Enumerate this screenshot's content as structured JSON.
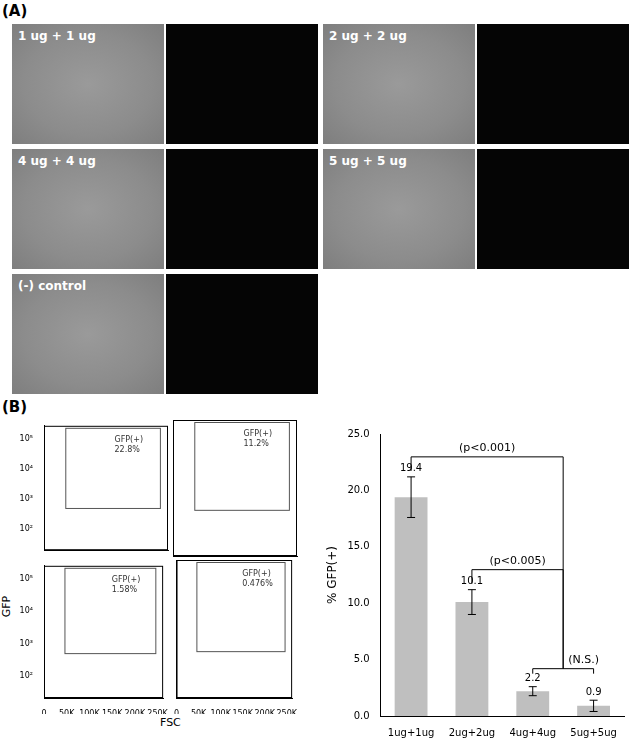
{
  "panel_labels": [
    "(A)",
    "(B)"
  ],
  "images": [
    {
      "label": "1 ug + 1 ug"
    },
    {
      "label": "2 ug + 2 ug"
    },
    {
      "label": "4 ug + 4 ug"
    },
    {
      "label": "5 ug + 5 ug"
    },
    {
      "label": "(-) control"
    }
  ],
  "flow_axes": {
    "x_label": "FSC",
    "y_label": "GFP"
  },
  "chart_data": [
    {
      "type": "scatter",
      "log": "y",
      "grid": false,
      "tick_labels": "y",
      "xlim": [
        0,
        262144
      ],
      "xticks": [
        0,
        {
          "value": 50000,
          "label": "50K"
        },
        {
          "value": 100000,
          "label": "100K"
        },
        {
          "value": 150000,
          "label": "150K"
        },
        {
          "value": 200000,
          "label": "200K"
        },
        {
          "value": 250000,
          "label": "250K"
        }
      ],
      "ylim": [
        20,
        262144
      ],
      "yticks": [
        {
          "value": 100,
          "label": "10²"
        },
        {
          "value": 1000,
          "label": "10³"
        },
        {
          "value": 10000,
          "label": "10⁴"
        },
        {
          "value": 100000,
          "label": "10⁵"
        }
      ],
      "gate": {
        "x": [
          45000,
          245000
        ],
        "y": [
          500,
          262144
        ]
      },
      "gate_text": [
        "GFP(+)",
        "22.8%"
      ]
    },
    {
      "type": "scatter",
      "log": "y",
      "grid": false,
      "tick_labels": false,
      "xlim": [
        0,
        262144
      ],
      "xticks": [
        0,
        {
          "value": 50000,
          "label": "50K"
        },
        {
          "value": 100000,
          "label": "100K"
        },
        {
          "value": 150000,
          "label": "150K"
        },
        {
          "value": 200000,
          "label": "200K"
        },
        {
          "value": 250000,
          "label": "250K"
        }
      ],
      "ylim": [
        20,
        262144
      ],
      "yticks": [
        {
          "value": 100,
          "label": "10²"
        },
        {
          "value": 1000,
          "label": "10³"
        },
        {
          "value": 10000,
          "label": "10⁴"
        },
        {
          "value": 100000,
          "label": "10⁵"
        }
      ],
      "gate": {
        "x": [
          45000,
          245000
        ],
        "y": [
          500,
          262144
        ]
      },
      "gate_text": [
        "GFP(+)",
        "11.2%"
      ]
    },
    {
      "type": "scatter",
      "log": "y",
      "grid": false,
      "tick_labels": true,
      "xlim": [
        0,
        262144
      ],
      "xticks": [
        0,
        {
          "value": 50000,
          "label": "50K"
        },
        {
          "value": 100000,
          "label": "100K"
        },
        {
          "value": 150000,
          "label": "150K"
        },
        {
          "value": 200000,
          "label": "200K"
        },
        {
          "value": 250000,
          "label": "250K"
        }
      ],
      "ylim": [
        20,
        262144
      ],
      "yticks": [
        {
          "value": 100,
          "label": "10²"
        },
        {
          "value": 1000,
          "label": "10³"
        },
        {
          "value": 10000,
          "label": "10⁴"
        },
        {
          "value": 100000,
          "label": "10⁵"
        }
      ],
      "gate": {
        "x": [
          45000,
          245000
        ],
        "y": [
          500,
          262144
        ]
      },
      "gate_text": [
        "GFP(+)",
        "1.58%"
      ]
    },
    {
      "type": "scatter",
      "log": "y",
      "grid": false,
      "tick_labels": "x",
      "xlim": [
        0,
        262144
      ],
      "xticks": [
        0,
        {
          "value": 50000,
          "label": "50K"
        },
        {
          "value": 100000,
          "label": "100K"
        },
        {
          "value": 150000,
          "label": "150K"
        },
        {
          "value": 200000,
          "label": "200K"
        },
        {
          "value": 250000,
          "label": "250K"
        }
      ],
      "ylim": [
        20,
        262144
      ],
      "yticks": [
        {
          "value": 100,
          "label": "10²"
        },
        {
          "value": 1000,
          "label": "10³"
        },
        {
          "value": 10000,
          "label": "10⁴"
        },
        {
          "value": 100000,
          "label": "10⁵"
        }
      ],
      "gate": {
        "x": [
          45000,
          245000
        ],
        "y": [
          500,
          262144
        ]
      },
      "gate_text": [
        "GFP(+)",
        "0.476%"
      ]
    },
    {
      "type": "bar",
      "grid": false,
      "data_labels": true,
      "categories": [
        "1ug+1ug",
        "2ug+2ug",
        "4ug+4ug",
        "5ug+5ug"
      ],
      "values": [
        19.4,
        10.1,
        2.2,
        0.9
      ],
      "errors": [
        1.8,
        1.1,
        0.4,
        0.5
      ],
      "color": "#bfbfbf",
      "y_label": "% GFP(+)",
      "ylim": [
        0,
        25
      ],
      "yticks": [
        {
          "value": 0,
          "label": "0.0"
        },
        {
          "value": 5,
          "label": "5.0"
        },
        {
          "value": 10,
          "label": "10.0"
        },
        {
          "value": 15,
          "label": "15.0"
        },
        {
          "value": 20,
          "label": "20.0"
        },
        {
          "value": 25,
          "label": "25.0"
        }
      ],
      "annotations": [
        {
          "text": "(p<0.001)",
          "from": 0,
          "to": [
            2,
            3
          ]
        },
        {
          "text": "(p<0.005)",
          "from": 1,
          "to": [
            2,
            3
          ]
        },
        {
          "text": "(N.S.)",
          "between": [
            2,
            3
          ]
        }
      ]
    }
  ]
}
